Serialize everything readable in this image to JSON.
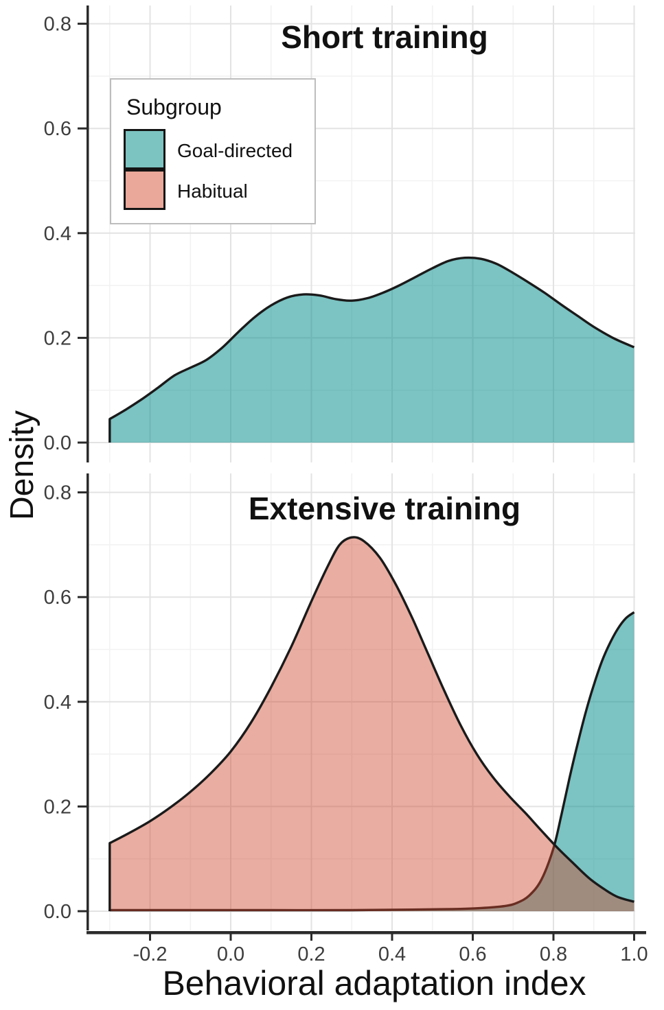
{
  "figure": {
    "y_axis_title": "Density",
    "x_axis_title": "Behavioral adaptation index"
  },
  "legend": {
    "title": "Subgroup",
    "items": [
      {
        "label": "Goal-directed",
        "swatch_color": "#7cc4c1"
      },
      {
        "label": "Habitual",
        "swatch_color": "#e9a89a"
      }
    ]
  },
  "chart_data": {
    "type": "area",
    "subtype": "kernel-density",
    "title": "",
    "xlabel": "Behavioral adaptation index",
    "ylabel": "Density",
    "x_range": [
      -0.3,
      1.0
    ],
    "y_range": [
      0,
      0.83
    ],
    "grid": "major+minor",
    "legend_position": "top-left-inside",
    "x_ticks": {
      "values": [
        -0.2,
        0.0,
        0.2,
        0.4,
        0.6,
        0.8,
        1.0
      ],
      "labels": [
        "-0.2",
        "0.0",
        "0.2",
        "0.4",
        "0.6",
        "0.8",
        "1.0"
      ]
    },
    "y_ticks": {
      "values": [
        0.0,
        0.2,
        0.4,
        0.6,
        0.8
      ],
      "labels": [
        "0.0",
        "0.2",
        "0.4",
        "0.6",
        "0.8"
      ]
    },
    "x_minor_ticks": [
      -0.3,
      -0.1,
      0.1,
      0.3,
      0.5,
      0.7,
      0.9
    ],
    "y_minor_ticks": [
      0.1,
      0.3,
      0.5,
      0.7
    ],
    "panels": [
      {
        "title": "Short training",
        "series": [
          {
            "name": "Goal-directed",
            "points": [
              [
                -0.3,
                0.045
              ],
              [
                -0.26,
                0.063
              ],
              [
                -0.22,
                0.083
              ],
              [
                -0.18,
                0.105
              ],
              [
                -0.14,
                0.128
              ],
              [
                -0.1,
                0.143
              ],
              [
                -0.06,
                0.158
              ],
              [
                -0.02,
                0.182
              ],
              [
                0.02,
                0.212
              ],
              [
                0.06,
                0.24
              ],
              [
                0.1,
                0.262
              ],
              [
                0.14,
                0.277
              ],
              [
                0.18,
                0.283
              ],
              [
                0.22,
                0.281
              ],
              [
                0.26,
                0.274
              ],
              [
                0.3,
                0.271
              ],
              [
                0.34,
                0.276
              ],
              [
                0.38,
                0.287
              ],
              [
                0.42,
                0.301
              ],
              [
                0.46,
                0.317
              ],
              [
                0.5,
                0.333
              ],
              [
                0.54,
                0.347
              ],
              [
                0.58,
                0.353
              ],
              [
                0.62,
                0.351
              ],
              [
                0.66,
                0.341
              ],
              [
                0.7,
                0.324
              ],
              [
                0.74,
                0.305
              ],
              [
                0.78,
                0.285
              ],
              [
                0.82,
                0.263
              ],
              [
                0.86,
                0.242
              ],
              [
                0.9,
                0.221
              ],
              [
                0.95,
                0.199
              ],
              [
                1.0,
                0.182
              ]
            ]
          }
        ]
      },
      {
        "title": "Extensive training",
        "series": [
          {
            "name": "Goal-directed",
            "points": [
              [
                -0.3,
                0.002
              ],
              [
                -0.1,
                0.002
              ],
              [
                0.1,
                0.002
              ],
              [
                0.3,
                0.002
              ],
              [
                0.45,
                0.003
              ],
              [
                0.55,
                0.004
              ],
              [
                0.62,
                0.006
              ],
              [
                0.68,
                0.01
              ],
              [
                0.71,
                0.016
              ],
              [
                0.74,
                0.03
              ],
              [
                0.77,
                0.06
              ],
              [
                0.8,
                0.12
              ],
              [
                0.82,
                0.185
              ],
              [
                0.84,
                0.255
              ],
              [
                0.86,
                0.32
              ],
              [
                0.88,
                0.38
              ],
              [
                0.9,
                0.432
              ],
              [
                0.92,
                0.477
              ],
              [
                0.94,
                0.512
              ],
              [
                0.96,
                0.54
              ],
              [
                0.98,
                0.56
              ],
              [
                1.0,
                0.571
              ]
            ]
          },
          {
            "name": "Habitual",
            "points": [
              [
                -0.3,
                0.13
              ],
              [
                -0.25,
                0.15
              ],
              [
                -0.2,
                0.172
              ],
              [
                -0.15,
                0.198
              ],
              [
                -0.1,
                0.228
              ],
              [
                -0.05,
                0.263
              ],
              [
                0.0,
                0.305
              ],
              [
                0.05,
                0.36
              ],
              [
                0.1,
                0.428
              ],
              [
                0.15,
                0.505
              ],
              [
                0.2,
                0.592
              ],
              [
                0.24,
                0.658
              ],
              [
                0.27,
                0.7
              ],
              [
                0.3,
                0.714
              ],
              [
                0.33,
                0.707
              ],
              [
                0.37,
                0.675
              ],
              [
                0.41,
                0.623
              ],
              [
                0.45,
                0.56
              ],
              [
                0.49,
                0.49
              ],
              [
                0.53,
                0.42
              ],
              [
                0.57,
                0.355
              ],
              [
                0.61,
                0.3
              ],
              [
                0.65,
                0.256
              ],
              [
                0.69,
                0.22
              ],
              [
                0.73,
                0.188
              ],
              [
                0.77,
                0.154
              ],
              [
                0.81,
                0.121
              ],
              [
                0.85,
                0.091
              ],
              [
                0.89,
                0.062
              ],
              [
                0.93,
                0.04
              ],
              [
                0.96,
                0.027
              ],
              [
                1.0,
                0.018
              ]
            ]
          }
        ]
      }
    ],
    "colors": {
      "series_fills": {
        "Goal-directed": "rgba(17,146,146,0.55)",
        "Habitual": "rgba(206,69,44,0.445)"
      },
      "curve_stroke": "#1a1a1a",
      "gridline_major": "#e3e3e3",
      "gridline_minor": "#f2f2f2",
      "axis_line": "#2b2b2b",
      "tick_mark": "#2b2b2b",
      "tick_label": "#3d3d3d"
    }
  }
}
